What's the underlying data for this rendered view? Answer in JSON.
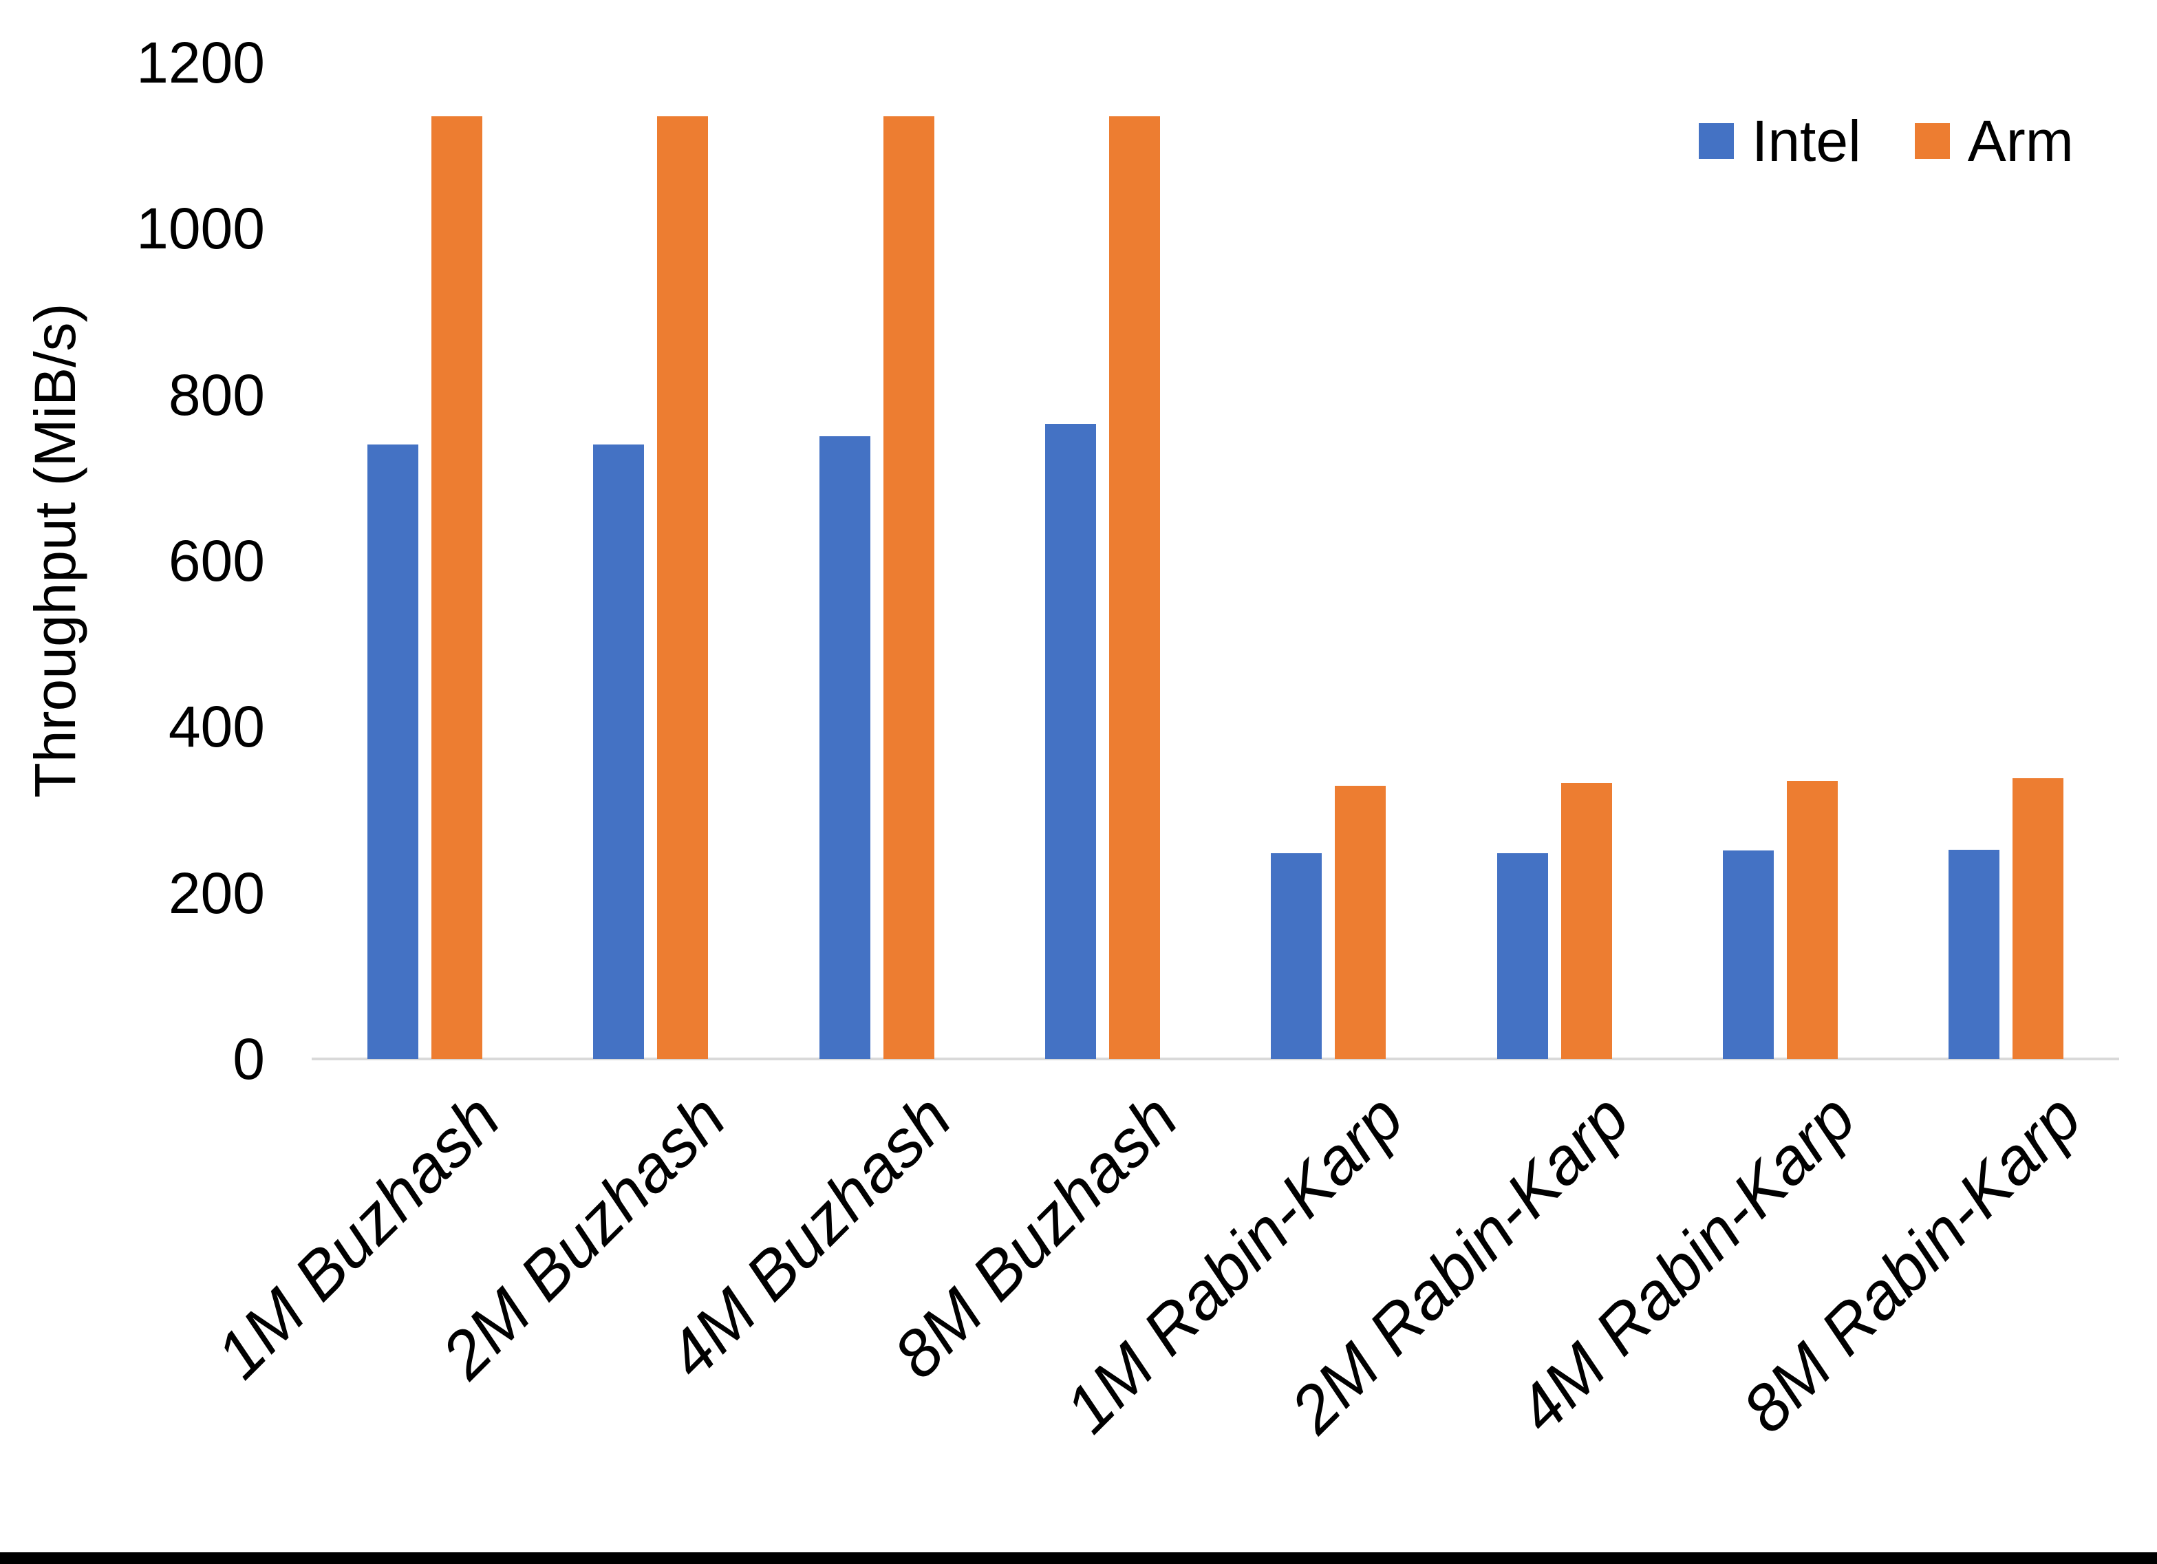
{
  "chart_data": {
    "type": "bar",
    "title": "",
    "xlabel": "",
    "ylabel": "Throughput (MiB/s)",
    "ylim": [
      0,
      1200
    ],
    "y_ticks": [
      0,
      200,
      400,
      600,
      800,
      1000,
      1200
    ],
    "grid": false,
    "legend_position": "top-right",
    "categories": [
      "1M Buzhash",
      "2M Buzhash",
      "4M Buzhash",
      "8M Buzhash",
      "1M Rabin-Karp",
      "2M Rabin-Karp",
      "4M Rabin-Karp",
      "8M Rabin-Karp"
    ],
    "series": [
      {
        "name": "Intel",
        "color": "#4472C4",
        "values": [
          740,
          740,
          750,
          765,
          248,
          248,
          251,
          252
        ]
      },
      {
        "name": "Arm",
        "color": "#ED7D31",
        "values": [
          1135,
          1135,
          1135,
          1135,
          329,
          332,
          335,
          338
        ]
      }
    ]
  },
  "colors": {
    "axis_line": "#D9D9D9",
    "text": "#000000",
    "background": "#FFFFFF",
    "footer_bar": "#000000"
  }
}
